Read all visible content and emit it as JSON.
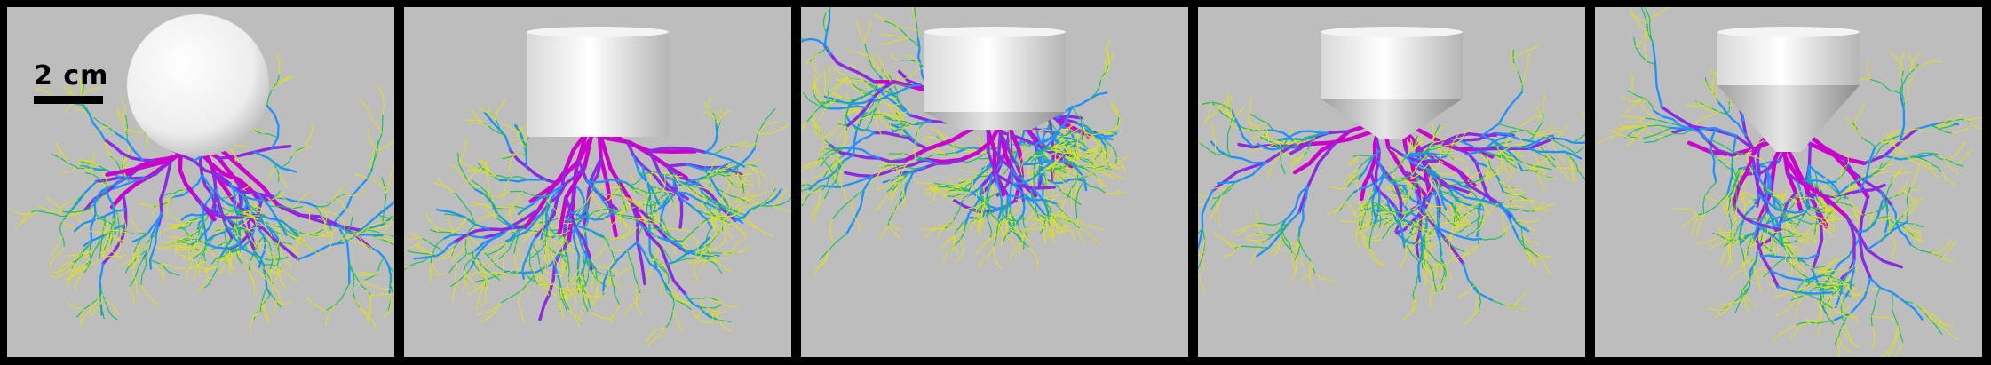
{
  "scale": {
    "label": "2 cm"
  },
  "colors": {
    "background": "#000000",
    "panel": "#bdbdbd",
    "root_palette": [
      "#cc00cc",
      "#8a2be2",
      "#2020d0",
      "#1e90ff",
      "#00c8c8",
      "#20c060",
      "#80d020",
      "#e0e020",
      "#e0a020",
      "#c06020"
    ]
  },
  "panels": [
    {
      "id": "sphere",
      "shape": "sphere"
    },
    {
      "id": "cylinder",
      "shape": "cylinder"
    },
    {
      "id": "short-cone",
      "shape": "cylinder-short-cone"
    },
    {
      "id": "medium-cone",
      "shape": "cylinder-medium-cone"
    },
    {
      "id": "long-cone",
      "shape": "cylinder-long-cone"
    }
  ]
}
